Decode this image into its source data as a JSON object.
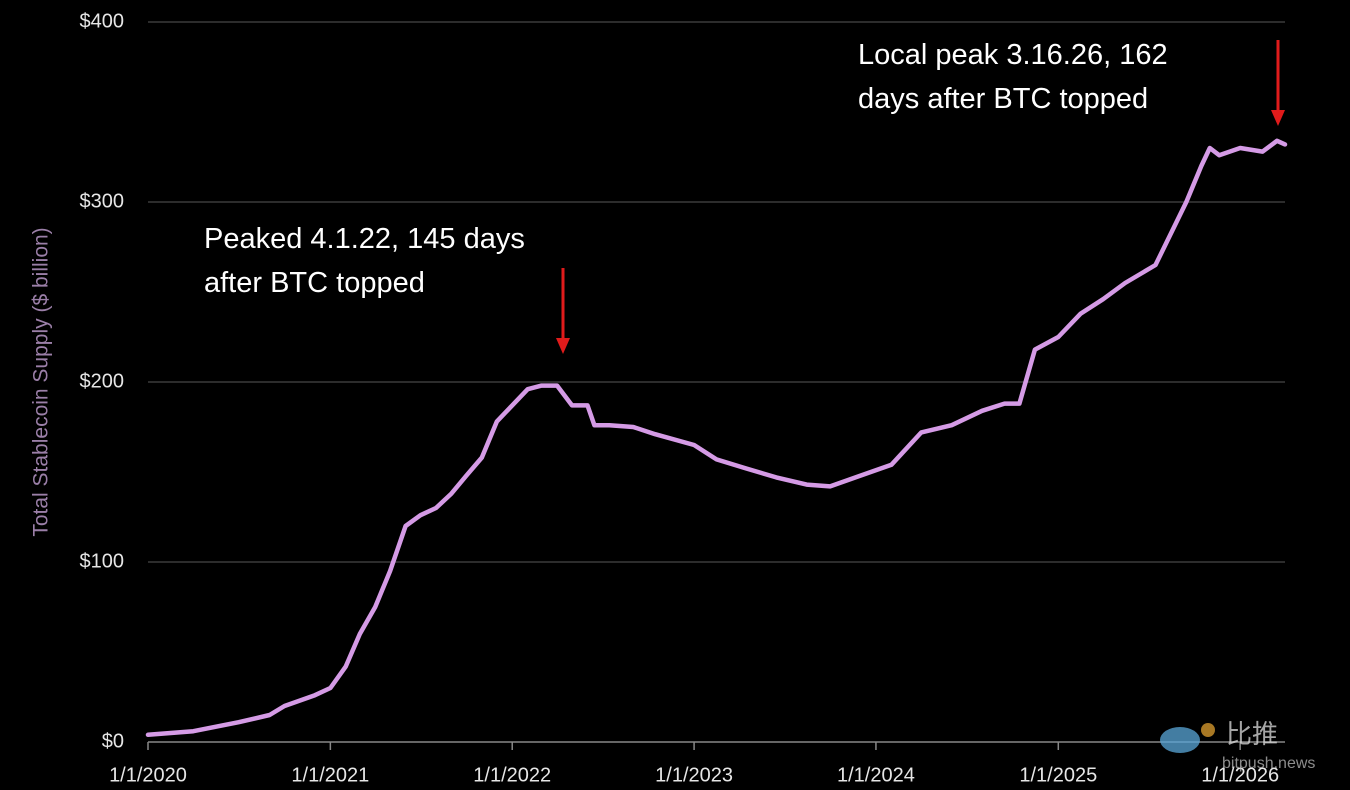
{
  "chart_data": {
    "type": "line",
    "y_label": "Total Stablecoin Supply ($ billion)",
    "color": "#d59be6",
    "x": [
      "2020-01-01",
      "2020-04-01",
      "2020-07-01",
      "2020-09-01",
      "2020-10-01",
      "2020-12-01",
      "2021-01-01",
      "2021-02-01",
      "2021-03-01",
      "2021-04-01",
      "2021-05-01",
      "2021-06-01",
      "2021-07-01",
      "2021-08-01",
      "2021-09-01",
      "2021-10-01",
      "2021-11-01",
      "2021-12-01",
      "2022-01-01",
      "2022-02-01",
      "2022-03-01",
      "2022-04-01",
      "2022-05-01",
      "2022-06-01",
      "2022-06-15",
      "2022-07-15",
      "2022-09-01",
      "2022-10-15",
      "2023-01-01",
      "2023-02-15",
      "2023-04-15",
      "2023-06-15",
      "2023-08-15",
      "2023-10-01",
      "2023-12-01",
      "2024-02-01",
      "2024-04-01",
      "2024-06-01",
      "2024-08-01",
      "2024-09-15",
      "2024-10-15",
      "2024-11-15",
      "2025-01-01",
      "2025-02-15",
      "2025-04-01",
      "2025-05-15",
      "2025-07-15",
      "2025-09-15",
      "2025-10-15",
      "2025-11-01",
      "2025-11-20",
      "2026-01-01",
      "2026-02-15",
      "2026-03-16",
      "2026-04-01"
    ],
    "values": [
      4,
      6,
      11,
      15,
      20,
      26,
      30,
      42,
      60,
      75,
      95,
      120,
      126,
      130,
      138,
      148,
      158,
      178,
      187,
      196,
      198,
      198,
      187,
      187,
      176,
      176,
      175,
      171,
      165,
      157,
      152,
      147,
      143,
      142,
      148,
      154,
      172,
      176,
      184,
      188,
      188,
      218,
      225,
      238,
      246,
      255,
      265,
      300,
      320,
      330,
      326,
      330,
      328,
      334,
      332
    ],
    "xlim": [
      "2020-01-01",
      "2026-04-01"
    ],
    "xticks": [
      {
        "value": "2020-01-01",
        "label": "1/1/2020"
      },
      {
        "value": "2021-01-01",
        "label": "1/1/2021"
      },
      {
        "value": "2022-01-01",
        "label": "1/1/2022"
      },
      {
        "value": "2023-01-01",
        "label": "1/1/2023"
      },
      {
        "value": "2024-01-01",
        "label": "1/1/2024"
      },
      {
        "value": "2025-01-01",
        "label": "1/1/2025"
      },
      {
        "value": "2026-01-01",
        "label": "1/1/2026"
      }
    ],
    "ylim": [
      0,
      400
    ],
    "yticks": [
      {
        "value": 0,
        "label": "$0"
      },
      {
        "value": 100,
        "label": "$100"
      },
      {
        "value": 200,
        "label": "$200"
      },
      {
        "value": 300,
        "label": "$300"
      },
      {
        "value": 400,
        "label": "$400"
      }
    ],
    "grid": true,
    "annotations": [
      {
        "lines": [
          "Peaked 4.1.22, 145 days",
          "after BTC topped"
        ]
      },
      {
        "lines": [
          "Local peak 3.16.26, 162",
          "days after BTC topped"
        ]
      }
    ],
    "watermark": {
      "name": "比推",
      "site": "bitpush.news"
    }
  }
}
